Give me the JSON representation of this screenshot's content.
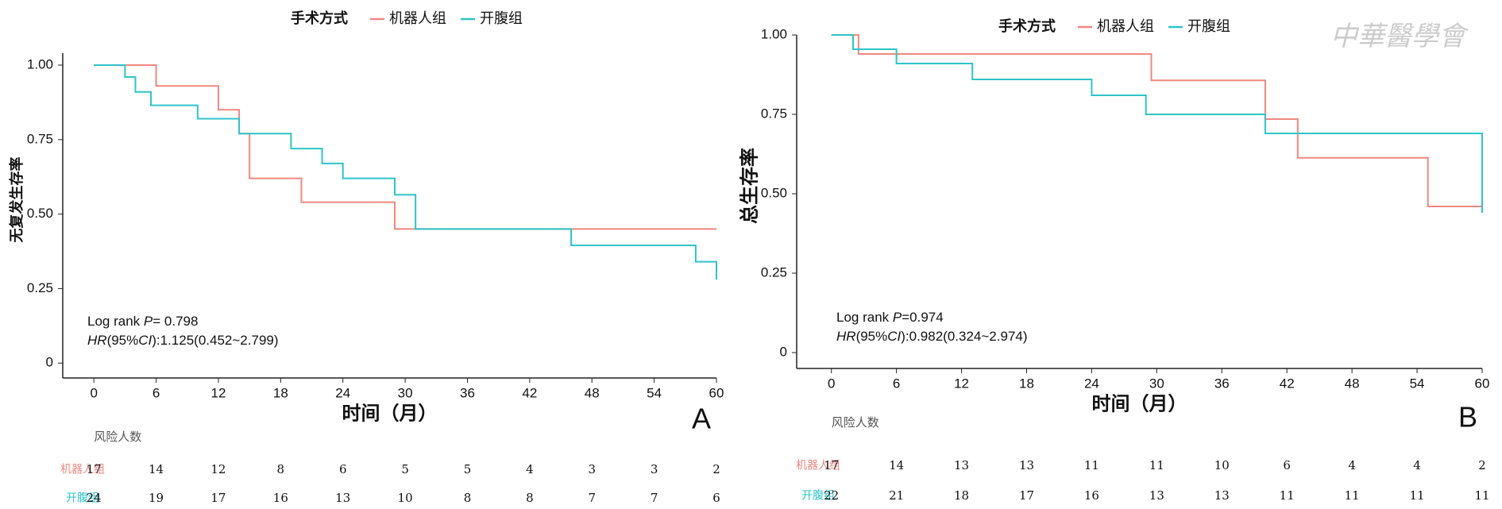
{
  "chart_data": [
    {
      "type": "step",
      "panel": "A",
      "legend_title": "手术方式",
      "x_label": "时间（月）",
      "y_label": "无复发生存率",
      "xlim": [
        -3,
        60
      ],
      "xticks": [
        0,
        6,
        12,
        18,
        24,
        30,
        36,
        42,
        48,
        54,
        60
      ],
      "ylim": [
        -0.05,
        1.04
      ],
      "yticks": [
        0,
        0.25,
        {
          "value": 0.5,
          "label": "0.50"
        },
        0.75,
        {
          "value": 1,
          "label": "1.00"
        }
      ],
      "annotations": [
        [
          {
            "text": "Log rank "
          },
          {
            "text": "P",
            "italic": true
          },
          {
            "text": "= 0.798"
          }
        ],
        [
          {
            "text": "HR",
            "italic": true
          },
          {
            "text": "(95%"
          },
          {
            "text": "CI",
            "italic": true
          },
          {
            "text": "):1.125(0.452~2.799)"
          }
        ]
      ],
      "series": [
        {
          "name": "机器人组",
          "color": "#f08880",
          "x": [
            0,
            6,
            12,
            14,
            15,
            20,
            29,
            60
          ],
          "values": [
            1,
            0.93,
            0.85,
            0.77,
            0.62,
            0.54,
            0.45,
            0.45
          ]
        },
        {
          "name": "开腹组",
          "color": "#2ec4c8",
          "x": [
            0,
            3,
            4,
            5.5,
            10,
            14,
            19,
            22,
            24,
            29,
            31,
            46,
            58,
            60
          ],
          "values": [
            1,
            0.96,
            0.91,
            0.865,
            0.82,
            0.77,
            0.72,
            0.67,
            0.62,
            0.565,
            0.45,
            0.395,
            0.34,
            0.28
          ]
        }
      ],
      "risk_table": {
        "title": "风险人数",
        "rows": [
          {
            "name": "机器人组",
            "values": [
              17,
              14,
              12,
              8,
              6,
              5,
              5,
              4,
              3,
              3,
              2
            ]
          },
          {
            "name": "开腹组",
            "values": [
              24,
              19,
              17,
              16,
              13,
              10,
              8,
              8,
              7,
              7,
              6
            ]
          }
        ]
      }
    },
    {
      "type": "step",
      "panel": "B",
      "legend_title": "手术方式",
      "x_label": "时间（月）",
      "y_label": "总生存率",
      "xlim": [
        -3.2,
        60
      ],
      "xticks": [
        0,
        6,
        12,
        18,
        24,
        30,
        36,
        42,
        48,
        54,
        60
      ],
      "ylim": [
        -0.05,
        1.0
      ],
      "yticks": [
        0,
        0.25,
        {
          "value": 0.5,
          "label": "0.50"
        },
        0.75,
        {
          "value": 1,
          "label": "1.00"
        }
      ],
      "annotations": [
        [
          {
            "text": "Log rank "
          },
          {
            "text": "P",
            "italic": true
          },
          {
            "text": "=0.974"
          }
        ],
        [
          {
            "text": "HR",
            "italic": true
          },
          {
            "text": "(95%"
          },
          {
            "text": "CI",
            "italic": true
          },
          {
            "text": "):0.982(0.324~2.974)"
          }
        ]
      ],
      "series": [
        {
          "name": "机器人组",
          "color": "#f08880",
          "x": [
            0,
            2.5,
            29.5,
            40,
            43,
            55,
            60
          ],
          "values": [
            1,
            0.94,
            0.857,
            0.735,
            0.613,
            0.46,
            0.46
          ]
        },
        {
          "name": "开腹组",
          "color": "#2ec4c8",
          "x": [
            0,
            2,
            6,
            13,
            24,
            29,
            40,
            60
          ],
          "values": [
            1,
            0.955,
            0.91,
            0.86,
            0.81,
            0.75,
            0.69,
            0.44
          ]
        }
      ],
      "risk_table": {
        "title": "风险人数",
        "rows": [
          {
            "name": "机器人组",
            "values": [
              17,
              14,
              13,
              13,
              11,
              11,
              10,
              6,
              4,
              4,
              2
            ]
          },
          {
            "name": "开腹组",
            "values": [
              22,
              21,
              18,
              17,
              16,
              13,
              13,
              11,
              11,
              11,
              11
            ]
          }
        ]
      }
    }
  ],
  "watermark": "中華醫學會"
}
